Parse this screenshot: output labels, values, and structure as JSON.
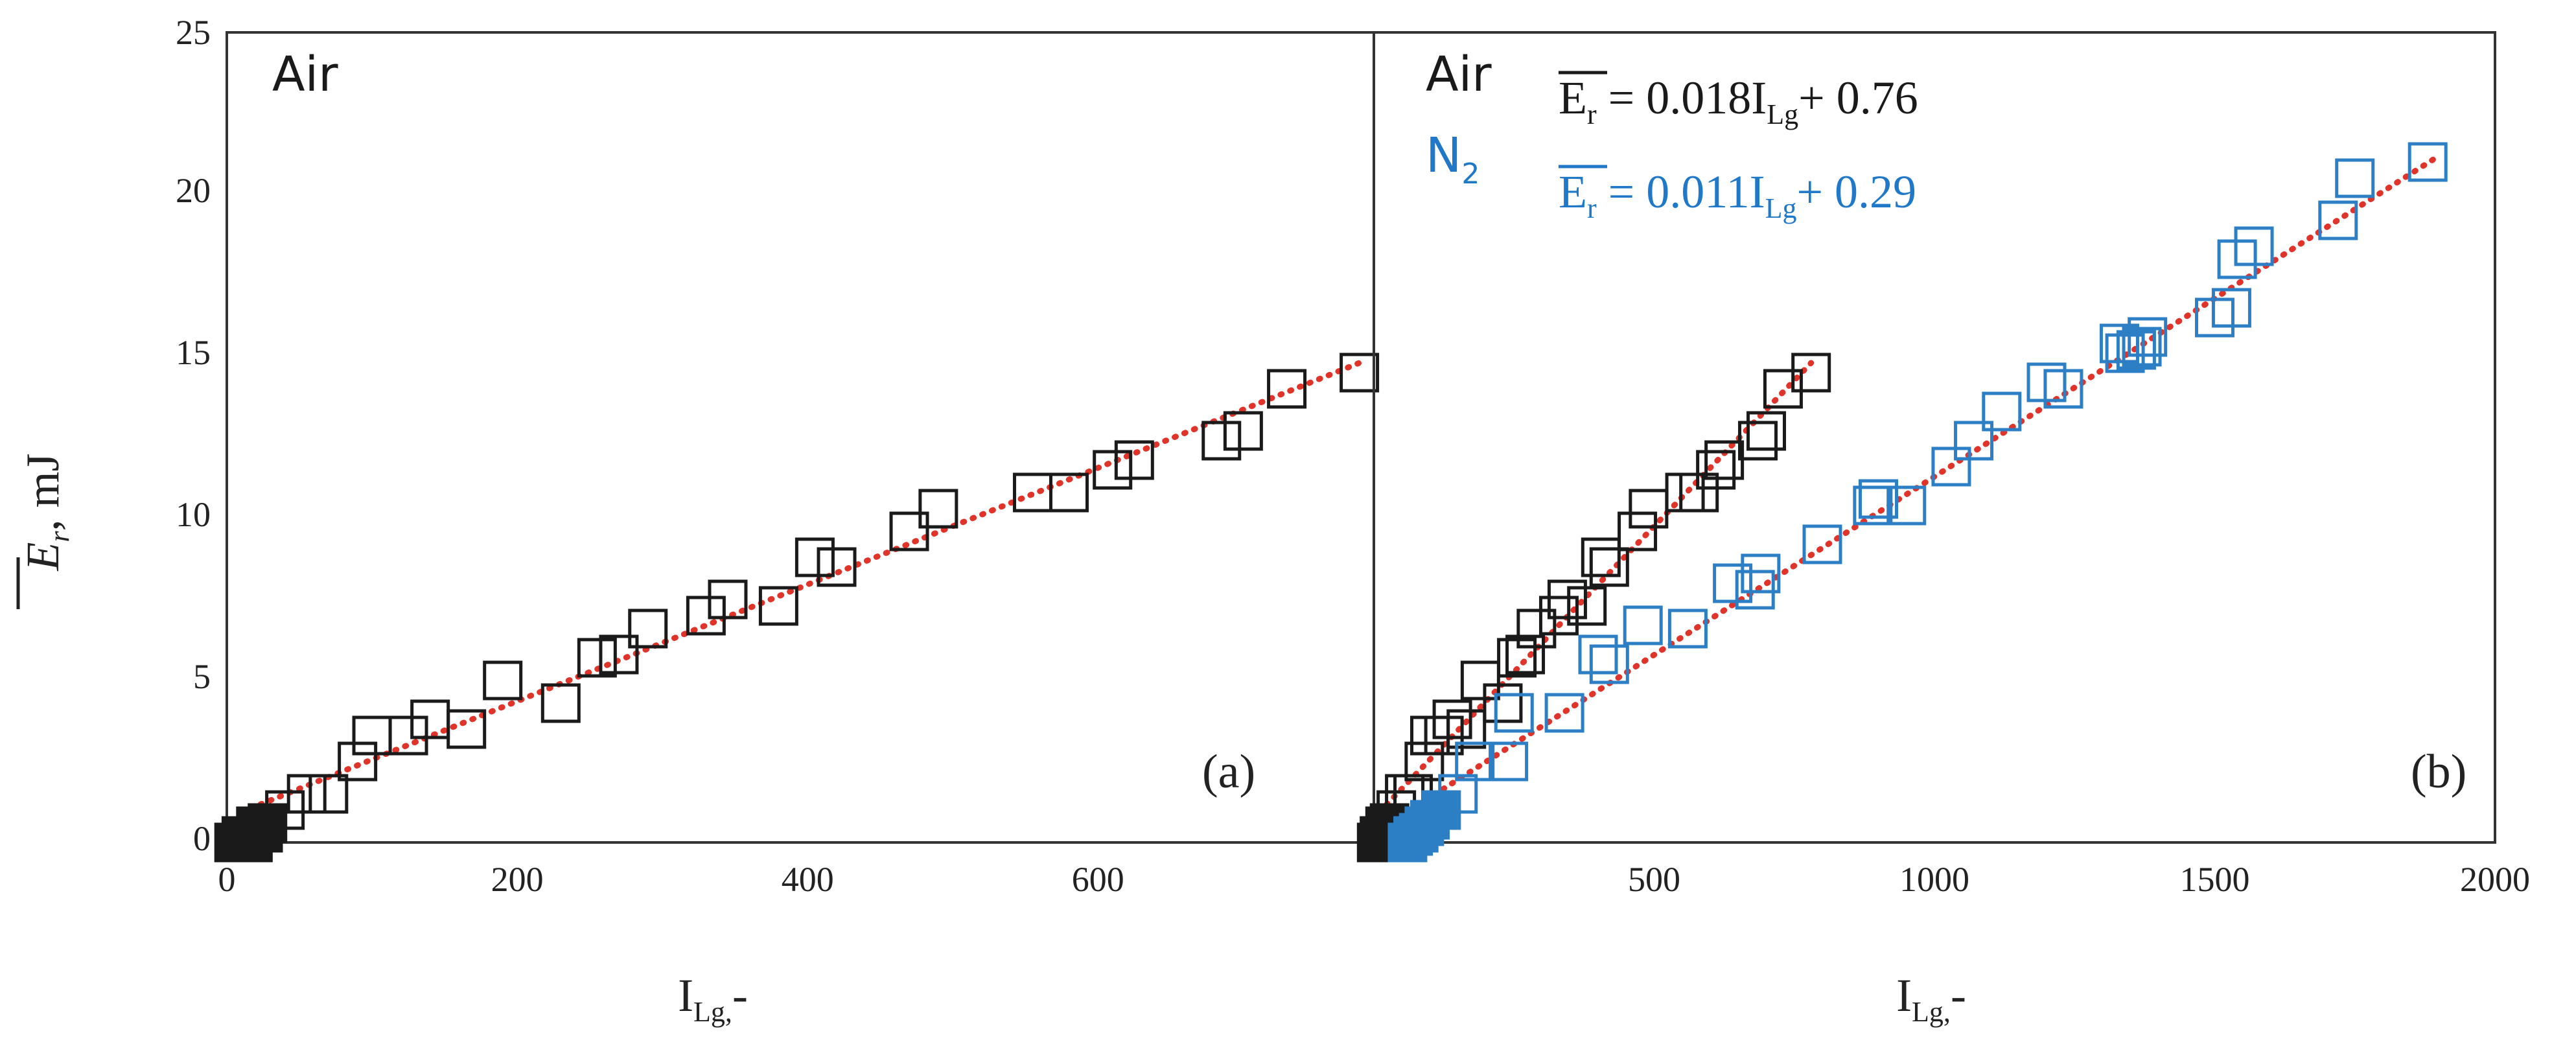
{
  "colors": {
    "air": "#1a1a1a",
    "n2": "#2c7fc4",
    "fit": "#e0342a",
    "axis": "#333333",
    "n2_text": "#1f78c8"
  },
  "y_axis": {
    "label_main": "E",
    "label_sub": "r",
    "label_unit": ", mJ",
    "range": [
      0,
      25
    ],
    "ticks": [
      "0",
      "5",
      "10",
      "15",
      "20",
      "25"
    ]
  },
  "chart_data": [
    {
      "type": "scatter",
      "panel": "(a)",
      "legend_text": "Air",
      "xlabel_main": "I",
      "xlabel_sub": "Lg,",
      "xlabel_tail": "-",
      "xlim": [
        0,
        790
      ],
      "ylim": [
        0,
        25
      ],
      "xticks": [
        "0",
        "200",
        "400",
        "600"
      ],
      "xtick_values": [
        0,
        200,
        400,
        600
      ],
      "series": [
        {
          "name": "Air",
          "marker": "open-square",
          "color": "#1a1a1a",
          "points": [
            [
              40,
              1.0
            ],
            [
              55,
              1.5
            ],
            [
              70,
              1.5
            ],
            [
              90,
              2.5
            ],
            [
              100,
              3.3
            ],
            [
              125,
              3.3
            ],
            [
              140,
              3.8
            ],
            [
              165,
              3.5
            ],
            [
              190,
              5.0
            ],
            [
              230,
              4.3
            ],
            [
              255,
              5.7
            ],
            [
              270,
              5.8
            ],
            [
              290,
              6.6
            ],
            [
              330,
              7.0
            ],
            [
              345,
              7.5
            ],
            [
              380,
              7.3
            ],
            [
              405,
              8.8
            ],
            [
              420,
              8.5
            ],
            [
              470,
              9.6
            ],
            [
              490,
              10.3
            ],
            [
              555,
              10.8
            ],
            [
              580,
              10.8
            ],
            [
              610,
              11.5
            ],
            [
              625,
              11.8
            ],
            [
              685,
              12.4
            ],
            [
              700,
              12.7
            ],
            [
              730,
              14.0
            ],
            [
              780,
              14.5
            ]
          ]
        },
        {
          "name": "Air (filled)",
          "marker": "filled-square",
          "color": "#1a1a1a",
          "points": [
            [
              5,
              0
            ],
            [
              12,
              0
            ],
            [
              18,
              0
            ],
            [
              25,
              0.3
            ],
            [
              28,
              0.6
            ],
            [
              20,
              0.5
            ],
            [
              10,
              0.2
            ]
          ]
        }
      ],
      "fit": {
        "slope": 0.018,
        "intercept": 0.76,
        "x_range": [
          10,
          780
        ]
      }
    },
    {
      "type": "scatter",
      "panel": "(b)",
      "legend_text": [
        "Air",
        "N"
      ],
      "legend_sub": "2",
      "equations": [
        {
          "lhs": "E",
          "lhs_sub": "r",
          "mid": " = 0.018I",
          "mid_sub": "Lg",
          "tail": "+ 0.76",
          "color": "#1a1a1a"
        },
        {
          "lhs": "E",
          "lhs_sub": "r",
          "mid": " = 0.011I",
          "mid_sub": "Lg",
          "tail": "+ 0.29",
          "color": "#1f78c8"
        }
      ],
      "xlabel_main": "I",
      "xlabel_sub": "Lg,",
      "xlabel_tail": "-",
      "xlim": [
        0,
        2000
      ],
      "ylim": [
        0,
        25
      ],
      "xticks": [
        "500",
        "1000",
        "1500",
        "2000"
      ],
      "xtick_values": [
        500,
        1000,
        1500,
        2000
      ],
      "series": [
        {
          "name": "Air",
          "marker": "open-square",
          "color": "#1a1a1a",
          "points": [
            [
              40,
              1.0
            ],
            [
              55,
              1.5
            ],
            [
              70,
              1.5
            ],
            [
              90,
              2.5
            ],
            [
              100,
              3.3
            ],
            [
              125,
              3.3
            ],
            [
              140,
              3.8
            ],
            [
              165,
              3.5
            ],
            [
              190,
              5.0
            ],
            [
              230,
              4.3
            ],
            [
              255,
              5.7
            ],
            [
              270,
              5.8
            ],
            [
              290,
              6.6
            ],
            [
              330,
              7.0
            ],
            [
              345,
              7.5
            ],
            [
              380,
              7.3
            ],
            [
              405,
              8.8
            ],
            [
              420,
              8.5
            ],
            [
              470,
              9.6
            ],
            [
              490,
              10.3
            ],
            [
              555,
              10.8
            ],
            [
              580,
              10.8
            ],
            [
              610,
              11.5
            ],
            [
              625,
              11.8
            ],
            [
              685,
              12.4
            ],
            [
              700,
              12.7
            ],
            [
              730,
              14.0
            ],
            [
              780,
              14.5
            ]
          ]
        },
        {
          "name": "Air (filled)",
          "marker": "filled-square",
          "color": "#1a1a1a",
          "points": [
            [
              5,
              0
            ],
            [
              12,
              0
            ],
            [
              18,
              0
            ],
            [
              25,
              0.3
            ],
            [
              28,
              0.6
            ],
            [
              20,
              0.5
            ],
            [
              10,
              0.2
            ]
          ]
        },
        {
          "name": "N2",
          "marker": "open-square",
          "color": "#2c7fc4",
          "points": [
            [
              150,
              1.5
            ],
            [
              180,
              2.5
            ],
            [
              240,
              2.5
            ],
            [
              250,
              4.0
            ],
            [
              340,
              4.0
            ],
            [
              400,
              5.8
            ],
            [
              420,
              5.5
            ],
            [
              480,
              6.7
            ],
            [
              560,
              6.6
            ],
            [
              640,
              8.0
            ],
            [
              680,
              7.8
            ],
            [
              690,
              8.3
            ],
            [
              800,
              9.2
            ],
            [
              890,
              10.4
            ],
            [
              900,
              10.6
            ],
            [
              950,
              10.4
            ],
            [
              1030,
              11.6
            ],
            [
              1070,
              12.4
            ],
            [
              1120,
              13.3
            ],
            [
              1200,
              14.2
            ],
            [
              1230,
              14.0
            ],
            [
              1330,
              15.4
            ],
            [
              1340,
              15.1
            ],
            [
              1360,
              15.2
            ],
            [
              1370,
              15.3
            ],
            [
              1380,
              15.6
            ],
            [
              1500,
              16.2
            ],
            [
              1530,
              16.5
            ],
            [
              1540,
              18.0
            ],
            [
              1570,
              18.4
            ],
            [
              1720,
              19.2
            ],
            [
              1750,
              20.5
            ],
            [
              1880,
              21.0
            ]
          ]
        },
        {
          "name": "N2 (filled)",
          "marker": "filled-square",
          "color": "#2c7fc4",
          "points": [
            [
              60,
              0
            ],
            [
              80,
              0.3
            ],
            [
              100,
              0.7
            ],
            [
              120,
              1.0
            ],
            [
              90,
              0.5
            ],
            [
              70,
              0.2
            ]
          ]
        }
      ],
      "fits": [
        {
          "name": "Air fit",
          "slope": 0.018,
          "intercept": 0.76,
          "x_range": [
            10,
            780
          ]
        },
        {
          "name": "N2 fit",
          "slope": 0.011,
          "intercept": 0.29,
          "x_range": [
            30,
            1890
          ]
        }
      ]
    }
  ]
}
